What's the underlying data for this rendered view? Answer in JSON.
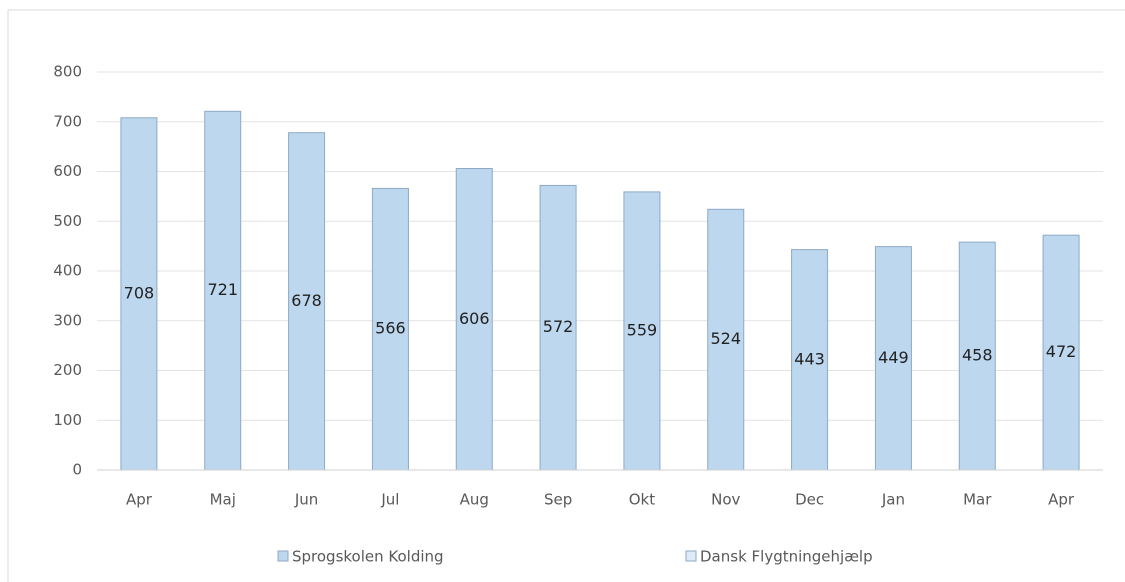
{
  "chart_data": {
    "type": "bar",
    "categories": [
      "Apr",
      "Maj",
      "Jun",
      "Jul",
      "Aug",
      "Sep",
      "Okt",
      "Nov",
      "Dec",
      "Jan",
      "Mar",
      "Apr"
    ],
    "series": [
      {
        "name": "Sprogskolen Kolding",
        "color": "#bdd7ee",
        "values": [
          708,
          721,
          678,
          566,
          606,
          572,
          559,
          524,
          443,
          449,
          458,
          472
        ]
      },
      {
        "name": "Dansk Flygtningehjælp",
        "color": "#deebf7",
        "values": [
          null,
          null,
          null,
          null,
          null,
          null,
          null,
          null,
          null,
          null,
          null,
          null
        ]
      }
    ],
    "ylim": [
      0,
      800
    ],
    "yticks": [
      0,
      100,
      200,
      300,
      400,
      500,
      600,
      700,
      800
    ],
    "grid": true
  }
}
